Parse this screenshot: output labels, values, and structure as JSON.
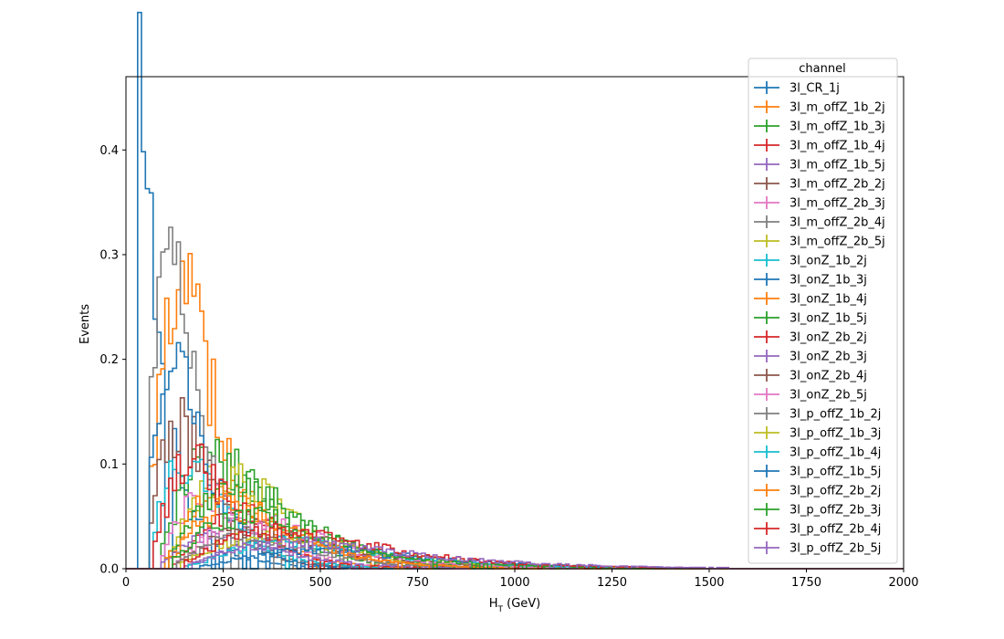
{
  "chart_data": {
    "type": "histogram",
    "title": "",
    "xlabel_main": "H",
    "xlabel_sub": "T",
    "xlabel_rest": " (GeV)",
    "ylabel": "Events",
    "xlim": [
      0,
      2000
    ],
    "ylim": [
      0,
      0.47
    ],
    "xticks": [
      0,
      250,
      500,
      750,
      1000,
      1250,
      1500,
      1750,
      2000
    ],
    "yticks": [
      0.0,
      0.1,
      0.2,
      0.3,
      0.4
    ],
    "grid": false,
    "legend": {
      "title": "channel",
      "placement": "upper-right"
    },
    "bin_width": 10,
    "series": [
      {
        "name": "3l_CR_1j",
        "color": "#1f77b4",
        "shape": "lognorm",
        "peak_x": 30,
        "peak_y": 0.45,
        "width": 0.85,
        "start": 30
      },
      {
        "name": "3l_m_offZ_1b_2j",
        "color": "#ff7f0e",
        "shape": "lognorm",
        "peak_x": 140,
        "peak_y": 0.26,
        "width": 0.5,
        "start": 60
      },
      {
        "name": "3l_m_offZ_1b_3j",
        "color": "#2ca02c",
        "shape": "lognorm",
        "peak_x": 220,
        "peak_y": 0.11,
        "width": 0.45,
        "start": 90
      },
      {
        "name": "3l_m_offZ_1b_4j",
        "color": "#d62728",
        "shape": "lognorm",
        "peak_x": 300,
        "peak_y": 0.05,
        "width": 0.42,
        "start": 120
      },
      {
        "name": "3l_m_offZ_1b_5j",
        "color": "#9467bd",
        "shape": "lognorm",
        "peak_x": 380,
        "peak_y": 0.025,
        "width": 0.45,
        "start": 150
      },
      {
        "name": "3l_m_offZ_2b_2j",
        "color": "#8c564b",
        "shape": "lognorm",
        "peak_x": 130,
        "peak_y": 0.14,
        "width": 0.5,
        "start": 60
      },
      {
        "name": "3l_m_offZ_2b_3j",
        "color": "#e377c2",
        "shape": "lognorm",
        "peak_x": 210,
        "peak_y": 0.07,
        "width": 0.45,
        "start": 90
      },
      {
        "name": "3l_m_offZ_2b_4j",
        "color": "#7f7f7f",
        "shape": "lognorm",
        "peak_x": 100,
        "peak_y": 0.29,
        "width": 0.55,
        "start": 60
      },
      {
        "name": "3l_m_offZ_2b_5j",
        "color": "#bcbd22",
        "shape": "lognorm",
        "peak_x": 260,
        "peak_y": 0.09,
        "width": 0.45,
        "start": 100
      },
      {
        "name": "3l_onZ_1b_2j",
        "color": "#17becf",
        "shape": "lognorm",
        "peak_x": 150,
        "peak_y": 0.1,
        "width": 0.5,
        "start": 70
      },
      {
        "name": "3l_onZ_1b_3j",
        "color": "#1f77b4",
        "shape": "lognorm",
        "peak_x": 115,
        "peak_y": 0.22,
        "width": 0.5,
        "start": 60
      },
      {
        "name": "3l_onZ_1b_4j",
        "color": "#ff7f0e",
        "shape": "lognorm",
        "peak_x": 250,
        "peak_y": 0.07,
        "width": 0.45,
        "start": 100
      },
      {
        "name": "3l_onZ_1b_5j",
        "color": "#2ca02c",
        "shape": "lognorm",
        "peak_x": 280,
        "peak_y": 0.08,
        "width": 0.45,
        "start": 110
      },
      {
        "name": "3l_onZ_2b_2j",
        "color": "#d62728",
        "shape": "lognorm",
        "peak_x": 170,
        "peak_y": 0.1,
        "width": 0.5,
        "start": 70
      },
      {
        "name": "3l_onZ_2b_3j",
        "color": "#9467bd",
        "shape": "lognorm",
        "peak_x": 230,
        "peak_y": 0.03,
        "width": 0.5,
        "start": 90
      },
      {
        "name": "3l_onZ_2b_4j",
        "color": "#8c564b",
        "shape": "lognorm",
        "peak_x": 330,
        "peak_y": 0.04,
        "width": 0.45,
        "start": 130
      },
      {
        "name": "3l_onZ_2b_5j",
        "color": "#e377c2",
        "shape": "lognorm",
        "peak_x": 320,
        "peak_y": 0.045,
        "width": 0.45,
        "start": 130
      },
      {
        "name": "3l_p_offZ_1b_2j",
        "color": "#7f7f7f",
        "shape": "lognorm",
        "peak_x": 300,
        "peak_y": 0.03,
        "width": 0.45,
        "start": 130
      },
      {
        "name": "3l_p_offZ_1b_3j",
        "color": "#bcbd22",
        "shape": "lognorm",
        "peak_x": 360,
        "peak_y": 0.03,
        "width": 0.5,
        "start": 140
      },
      {
        "name": "3l_p_offZ_1b_4j",
        "color": "#17becf",
        "shape": "lognorm",
        "peak_x": 410,
        "peak_y": 0.025,
        "width": 0.45,
        "start": 160
      },
      {
        "name": "3l_p_offZ_1b_5j",
        "color": "#1f77b4",
        "shape": "lognorm",
        "peak_x": 480,
        "peak_y": 0.018,
        "width": 0.45,
        "start": 190
      },
      {
        "name": "3l_p_offZ_2b_2j",
        "color": "#ff7f0e",
        "shape": "lognorm",
        "peak_x": 270,
        "peak_y": 0.06,
        "width": 0.45,
        "start": 110
      },
      {
        "name": "3l_p_offZ_2b_3j",
        "color": "#2ca02c",
        "shape": "lognorm",
        "peak_x": 310,
        "peak_y": 0.05,
        "width": 0.5,
        "start": 120
      },
      {
        "name": "3l_p_offZ_2b_4j",
        "color": "#d62728",
        "shape": "lognorm",
        "peak_x": 380,
        "peak_y": 0.035,
        "width": 0.5,
        "start": 150
      },
      {
        "name": "3l_p_offZ_2b_5j",
        "color": "#9467bd",
        "shape": "lognorm",
        "peak_x": 430,
        "peak_y": 0.025,
        "width": 0.5,
        "start": 170
      }
    ]
  }
}
